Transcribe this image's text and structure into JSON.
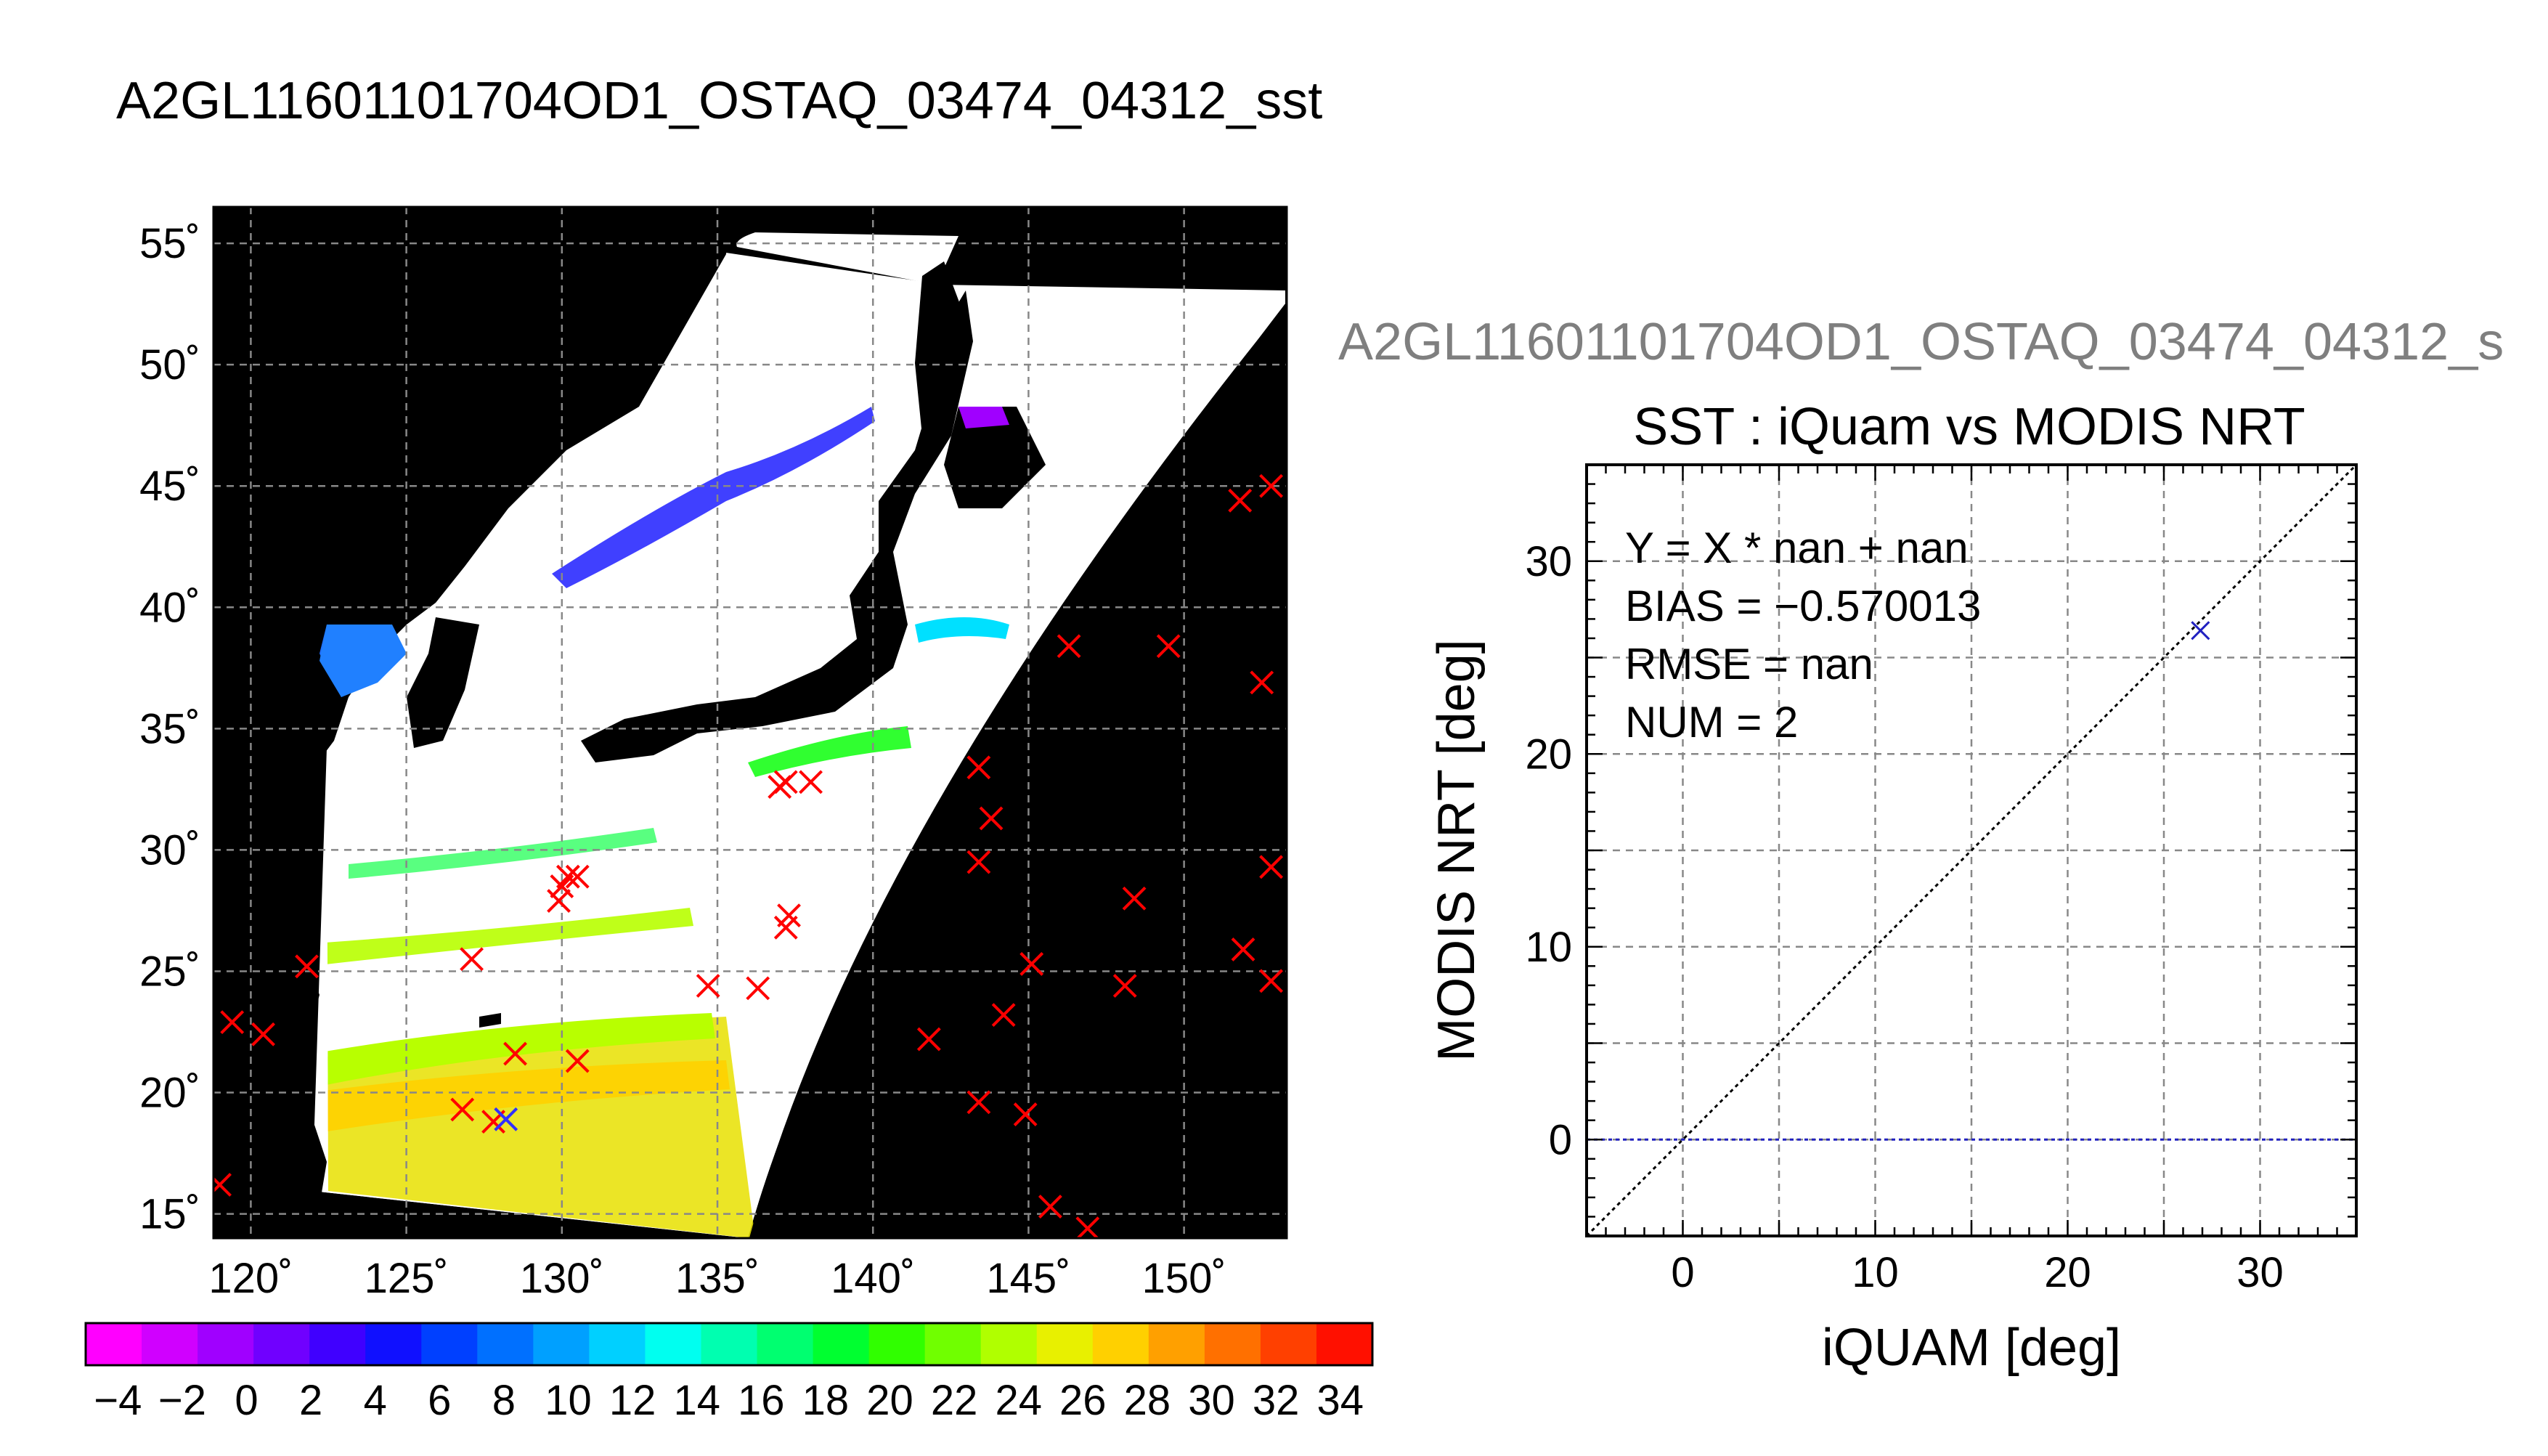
{
  "main_title": "A2GL11601101704OD1_OSTAQ_03474_04312_sst",
  "chart_data": [
    {
      "type": "scatter",
      "xlim": [
        118.8,
        153.3
      ],
      "ylim": [
        14.0,
        56.5
      ],
      "xticks": [
        120,
        125,
        130,
        135,
        140,
        145,
        150
      ],
      "yticks": [
        15,
        20,
        25,
        30,
        35,
        40,
        45,
        50,
        55
      ],
      "xtick_labels": [
        "120˚",
        "125˚",
        "130˚",
        "135˚",
        "140˚",
        "145˚",
        "150˚"
      ],
      "ytick_labels": [
        "15˚",
        "20˚",
        "25˚",
        "30˚",
        "35˚",
        "40˚",
        "45˚",
        "50˚",
        "55˚"
      ],
      "grid": true,
      "colors": {
        "frame": "#000000",
        "swath": "#ffffff",
        "marker": "#ff0000",
        "marker_alt": "#3030ff"
      },
      "points_red": [
        [
          152.8,
          45.0
        ],
        [
          151.8,
          44.4
        ],
        [
          149.5,
          38.4
        ],
        [
          146.3,
          38.4
        ],
        [
          152.5,
          36.9
        ],
        [
          143.4,
          33.4
        ],
        [
          143.8,
          31.3
        ],
        [
          143.4,
          29.5
        ],
        [
          152.8,
          29.3
        ],
        [
          148.4,
          28.0
        ],
        [
          151.9,
          25.9
        ],
        [
          152.8,
          24.6
        ],
        [
          148.1,
          24.4
        ],
        [
          145.1,
          25.3
        ],
        [
          144.2,
          23.2
        ],
        [
          141.8,
          22.2
        ],
        [
          143.4,
          19.6
        ],
        [
          144.9,
          19.1
        ],
        [
          145.7,
          15.3
        ],
        [
          146.9,
          14.4
        ],
        [
          137.2,
          32.8
        ],
        [
          137.0,
          32.6
        ],
        [
          138.0,
          32.8
        ],
        [
          137.3,
          27.3
        ],
        [
          137.2,
          26.8
        ],
        [
          136.3,
          24.3
        ],
        [
          134.7,
          24.4
        ],
        [
          130.2,
          28.9
        ],
        [
          130.0,
          28.5
        ],
        [
          130.5,
          28.9
        ],
        [
          129.9,
          27.9
        ],
        [
          127.1,
          25.5
        ],
        [
          121.8,
          25.2
        ],
        [
          119.4,
          22.9
        ],
        [
          120.4,
          22.4
        ],
        [
          128.5,
          21.6
        ],
        [
          130.5,
          21.3
        ],
        [
          126.8,
          19.3
        ],
        [
          127.8,
          18.8
        ],
        [
          119.0,
          16.2
        ]
      ],
      "points_blue": [
        [
          128.2,
          18.9
        ]
      ]
    },
    {
      "type": "scatter",
      "subtitle": "A2GL11601101704OD1_OSTAQ_03474_04312_s",
      "title": "SST : iQuam vs MODIS NRT",
      "xlabel": "iQUAM [deg]",
      "ylabel": "MODIS NRT [deg]",
      "xlim": [
        -5,
        35
      ],
      "ylim": [
        -5,
        35
      ],
      "xticks": [
        0,
        10,
        20,
        30
      ],
      "yticks": [
        0,
        10,
        20,
        30
      ],
      "grid": true,
      "stats": [
        "Y = X * nan + nan",
        "BIAS = −0.570013",
        "RMSE = nan",
        "NUM = 2"
      ],
      "points": [
        [
          26.9,
          26.4
        ]
      ],
      "identity_line": true,
      "fit_line_y": 0,
      "colors": {
        "marker": "#2020c0",
        "fit": "#2020c0",
        "identity": "#000000"
      }
    }
  ],
  "colorbar": {
    "min": -5,
    "max": 35,
    "tick_values": [
      -4,
      -2,
      0,
      2,
      4,
      6,
      8,
      10,
      12,
      14,
      16,
      18,
      20,
      22,
      24,
      26,
      28,
      30,
      32,
      34
    ],
    "tick_labels": [
      "−4",
      "−2",
      "0",
      "2",
      "4",
      "6",
      "8",
      "10",
      "12",
      "14",
      "16",
      "18",
      "20",
      "22",
      "24",
      "26",
      "28",
      "30",
      "32",
      "34"
    ],
    "colors": [
      "#ff00ff",
      "#d000ff",
      "#a000ff",
      "#7000ff",
      "#4000ff",
      "#1010ff",
      "#0040ff",
      "#0070ff",
      "#00a0ff",
      "#00d0ff",
      "#00fff0",
      "#00ffb0",
      "#00ff70",
      "#00ff30",
      "#30ff00",
      "#70ff00",
      "#b0ff00",
      "#e8f000",
      "#ffd000",
      "#ffa000",
      "#ff7000",
      "#ff4000",
      "#ff1000"
    ]
  }
}
